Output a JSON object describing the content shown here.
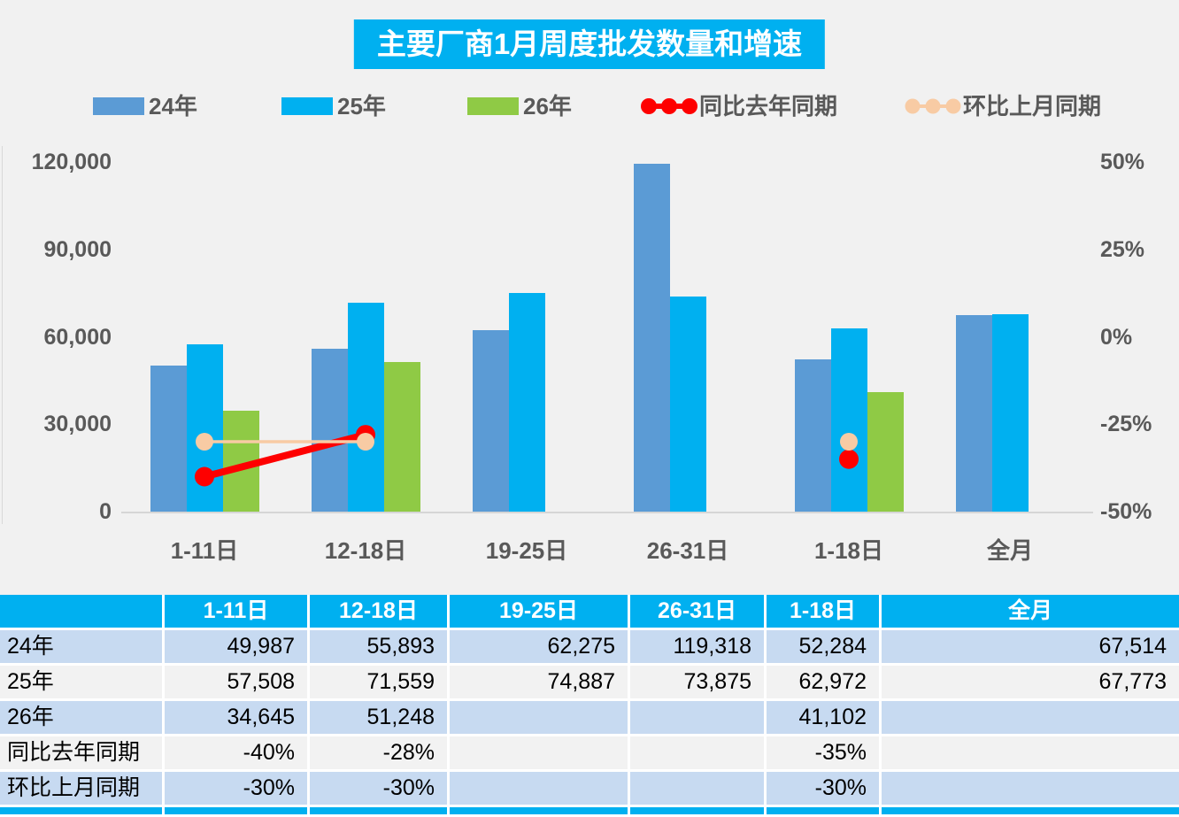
{
  "title": "主要厂商1月周度批发数量和增速",
  "colors": {
    "accent_cyan": "#00B0F0",
    "bar_24": "#5B9BD5",
    "bar_25": "#00B0F0",
    "bar_26": "#8FCA45",
    "line_yoy": "#FE0000",
    "line_mom": "#F8CBA4",
    "row_blue": "#C7DAF1",
    "row_gray": "#F2F2F2",
    "axis_text": "#595959"
  },
  "legend": [
    {
      "label": "24年",
      "type": "bar",
      "color": "#5B9BD5"
    },
    {
      "label": "25年",
      "type": "bar",
      "color": "#00B0F0"
    },
    {
      "label": "26年",
      "type": "bar",
      "color": "#8FCA45"
    },
    {
      "label": "同比去年同期",
      "type": "line",
      "color": "#FE0000"
    },
    {
      "label": "环比上月同期",
      "type": "line",
      "color": "#F8CBA4"
    }
  ],
  "chart_data": {
    "type": "bar",
    "title": "主要厂商1月周度批发数量和增速",
    "categories": [
      "1-11日",
      "12-18日",
      "19-25日",
      "26-31日",
      "1-18日",
      "全月"
    ],
    "series": [
      {
        "name": "24年",
        "type": "bar",
        "axis": "left",
        "color": "#5B9BD5",
        "values": [
          49987,
          55893,
          62275,
          119318,
          52284,
          67514
        ]
      },
      {
        "name": "25年",
        "type": "bar",
        "axis": "left",
        "color": "#00B0F0",
        "values": [
          57508,
          71559,
          74887,
          73875,
          62972,
          67773
        ]
      },
      {
        "name": "26年",
        "type": "bar",
        "axis": "left",
        "color": "#8FCA45",
        "values": [
          34645,
          51248,
          null,
          null,
          41102,
          null
        ]
      },
      {
        "name": "同比去年同期",
        "type": "line",
        "axis": "right",
        "color": "#FE0000",
        "values": [
          -40,
          -28,
          null,
          null,
          -35,
          null
        ]
      },
      {
        "name": "环比上月同期",
        "type": "line",
        "axis": "right",
        "color": "#F8CBA4",
        "values": [
          -30,
          -30,
          null,
          null,
          -30,
          null
        ]
      }
    ],
    "left_axis": {
      "ticks": [
        "120,000",
        "90,000",
        "60,000",
        "30,000",
        "0"
      ],
      "min": 0,
      "max": 120000
    },
    "right_axis": {
      "ticks": [
        "50%",
        "25%",
        "0%",
        "-25%",
        "-50%"
      ],
      "min": -50,
      "max": 50
    },
    "grid": false,
    "legend_position": "top"
  },
  "table": {
    "headers": [
      "",
      "1-11日",
      "12-18日",
      "19-25日",
      "26-31日",
      "1-18日",
      "全月"
    ],
    "rows": [
      {
        "label": "24年",
        "values": [
          "49,987",
          "55,893",
          "62,275",
          "119,318",
          "52,284",
          "67,514"
        ]
      },
      {
        "label": "25年",
        "values": [
          "57,508",
          "71,559",
          "74,887",
          "73,875",
          "62,972",
          "67,773"
        ]
      },
      {
        "label": "26年",
        "values": [
          "34,645",
          "51,248",
          "",
          "",
          "41,102",
          ""
        ]
      },
      {
        "label": "同比去年同期",
        "values": [
          "-40%",
          "-28%",
          "",
          "",
          "-35%",
          ""
        ]
      },
      {
        "label": "环比上月同期",
        "values": [
          "-30%",
          "-30%",
          "",
          "",
          "-30%",
          ""
        ]
      }
    ]
  }
}
